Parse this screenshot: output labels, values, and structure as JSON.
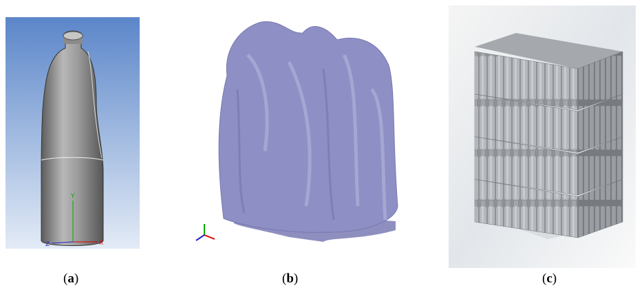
{
  "panels": [
    {
      "prefix": "(",
      "letter": "a",
      "suffix": ")",
      "axes": [
        "Y",
        "X",
        "Z"
      ]
    },
    {
      "prefix": "(",
      "letter": "b",
      "suffix": ")"
    },
    {
      "prefix": "(",
      "letter": "c",
      "suffix": ")"
    }
  ]
}
